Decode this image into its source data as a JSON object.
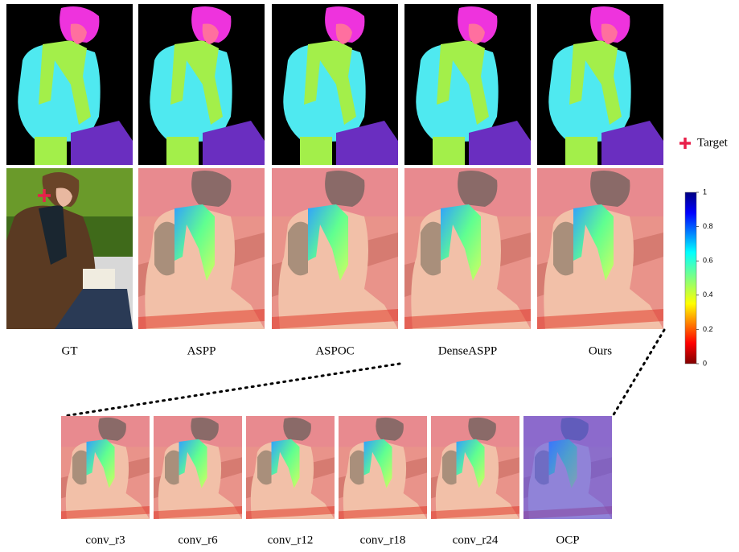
{
  "columns": [
    "GT",
    "ASPP",
    "ASPOC",
    "DenseASPP",
    "Ours"
  ],
  "bottom_row": [
    "conv_r3",
    "conv_r6",
    "conv_r12",
    "conv_r18",
    "conv_r24",
    "OCP"
  ],
  "legend": {
    "marker_label": "Target"
  },
  "colorbar": {
    "ticks": [
      0,
      0.2,
      0.4,
      0.6,
      0.8,
      1
    ]
  }
}
